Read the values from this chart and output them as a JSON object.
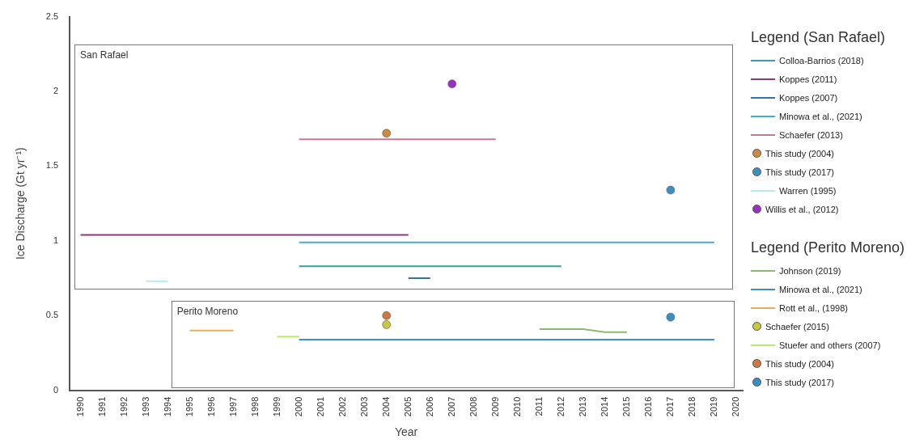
{
  "chart_data": [
    {
      "type": "line",
      "title": "San Rafael",
      "legend_title": "Legend (San Rafael)",
      "xlabel": "Year",
      "ylabel": "Ice Discharge (Gt yr⁻¹)",
      "xlim": [
        1989.5,
        2020.3
      ],
      "xticks": [
        1990,
        1991,
        1992,
        1993,
        1994,
        1995,
        1996,
        1997,
        1998,
        1999,
        2000,
        2001,
        2002,
        2003,
        2004,
        2005,
        2006,
        2007,
        2008,
        2009,
        2010,
        2011,
        2012,
        2013,
        2014,
        2015,
        2016,
        2017,
        2018,
        2019,
        2020
      ],
      "ylim": [
        0,
        2.5
      ],
      "yticks": [
        0,
        0.5,
        1,
        1.5,
        2,
        2.5
      ],
      "grid": false,
      "legend": "right",
      "series": [
        {
          "name": "Colloa-Barrios (2018)",
          "type": "line",
          "color": "#3a9aa8",
          "x": [
            2000,
            2012
          ],
          "values": [
            0.83,
            0.83
          ]
        },
        {
          "name": "Koppes (2011)",
          "type": "line",
          "color": "#8b3a7a",
          "x": [
            1990,
            2005
          ],
          "values": [
            1.04,
            1.04
          ]
        },
        {
          "name": "Koppes (2007)",
          "type": "line",
          "color": "#3e6e9e",
          "x": [
            2005,
            2006
          ],
          "values": [
            0.75,
            0.75
          ]
        },
        {
          "name": "Minowa et al., (2021)",
          "type": "line",
          "color": "#4aabd0",
          "x": [
            2000,
            2019
          ],
          "values": [
            0.99,
            0.99
          ]
        },
        {
          "name": "Schaefer (2013)",
          "type": "line",
          "color": "#c87890",
          "x": [
            2000,
            2009
          ],
          "values": [
            1.68,
            1.68
          ]
        },
        {
          "name": "This study (2004)",
          "type": "scatter",
          "color": "#d08840",
          "x": [
            2004
          ],
          "values": [
            1.72
          ]
        },
        {
          "name": "This study (2017)",
          "type": "scatter",
          "color": "#3e8fc0",
          "x": [
            2017
          ],
          "values": [
            1.34
          ]
        },
        {
          "name": "Warren (1995)",
          "type": "line",
          "color": "#b8e6f2",
          "x": [
            1993,
            1994
          ],
          "values": [
            0.73,
            0.73
          ]
        },
        {
          "name": "Willis et al., (2012)",
          "type": "scatter",
          "color": "#9b30c0",
          "x": [
            2007
          ],
          "values": [
            2.05
          ]
        }
      ]
    },
    {
      "type": "line",
      "title": "Perito Moreno",
      "legend_title": "Legend (Perito Moreno)",
      "xlim": [
        1989.5,
        2020.3
      ],
      "ylim": [
        0,
        2.5
      ],
      "tick_labels": false,
      "grid": false,
      "legend": "right",
      "series": [
        {
          "name": "Johnson (2019)",
          "type": "line",
          "color": "#8fb870",
          "x": [
            2011,
            2013,
            2014,
            2015
          ],
          "values": [
            0.41,
            0.41,
            0.39,
            0.39
          ]
        },
        {
          "name": "Minowa et al., (2021)",
          "type": "line",
          "color": "#3a8fc8",
          "x": [
            2000,
            2019
          ],
          "values": [
            0.34,
            0.34
          ]
        },
        {
          "name": "Rott et al., (1998)",
          "type": "line",
          "color": "#e0b060",
          "x": [
            1995,
            1997
          ],
          "values": [
            0.4,
            0.4
          ]
        },
        {
          "name": "Schaefer (2015)",
          "type": "scatter",
          "color": "#c8c840",
          "x": [
            2004
          ],
          "values": [
            0.44
          ]
        },
        {
          "name": "Stuefer and others (2007)",
          "type": "line",
          "color": "#b8e870",
          "x": [
            1999,
            2000
          ],
          "values": [
            0.36,
            0.36
          ]
        },
        {
          "name": "This study (2004)",
          "type": "scatter",
          "color": "#d07840",
          "x": [
            2004
          ],
          "values": [
            0.5
          ]
        },
        {
          "name": "This study (2017)",
          "type": "scatter",
          "color": "#3a8fc0",
          "x": [
            2017
          ],
          "values": [
            0.49
          ]
        }
      ]
    }
  ]
}
